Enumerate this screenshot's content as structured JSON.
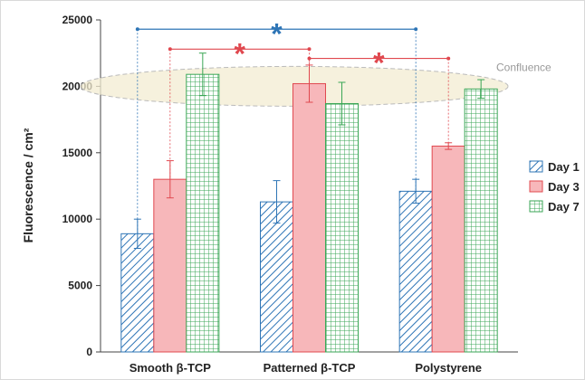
{
  "chart_data": {
    "type": "bar",
    "ylabel": "Fluorescence / cm²",
    "ylim": [
      0,
      25000
    ],
    "yticks": [
      0,
      5000,
      10000,
      15000,
      20000,
      25000
    ],
    "categories": [
      "Smooth β-TCP",
      "Patterned β-TCP",
      "Polystyrene"
    ],
    "series": [
      {
        "name": "Day 1",
        "color": "#2e75b6",
        "pattern": "diagonal-hatch",
        "values": [
          8900,
          11300,
          12100
        ],
        "errors": [
          1100,
          1600,
          900
        ]
      },
      {
        "name": "Day 3",
        "color": "#e0484f",
        "pattern": "solid-light-red",
        "values": [
          13000,
          20200,
          15500
        ],
        "errors": [
          1400,
          1400,
          250
        ]
      },
      {
        "name": "Day 7",
        "color": "#3aa655",
        "pattern": "grid-hatch",
        "values": [
          20900,
          18700,
          19800
        ],
        "errors": [
          1600,
          1600,
          700
        ]
      }
    ],
    "legend_position": "right",
    "annotations": {
      "confluence_label": "Confluence",
      "confluence_level": 20000,
      "significance_marker": "*",
      "brackets": [
        {
          "from": [
            0,
            0
          ],
          "to": [
            2,
            0
          ],
          "y": 24300,
          "color": "#2e75b6"
        },
        {
          "from": [
            0,
            1
          ],
          "to": [
            1,
            1
          ],
          "y": 22800,
          "color": "#e0484f"
        },
        {
          "from": [
            1,
            1
          ],
          "to": [
            2,
            1
          ],
          "y": 22100,
          "color": "#e0484f"
        }
      ]
    }
  }
}
